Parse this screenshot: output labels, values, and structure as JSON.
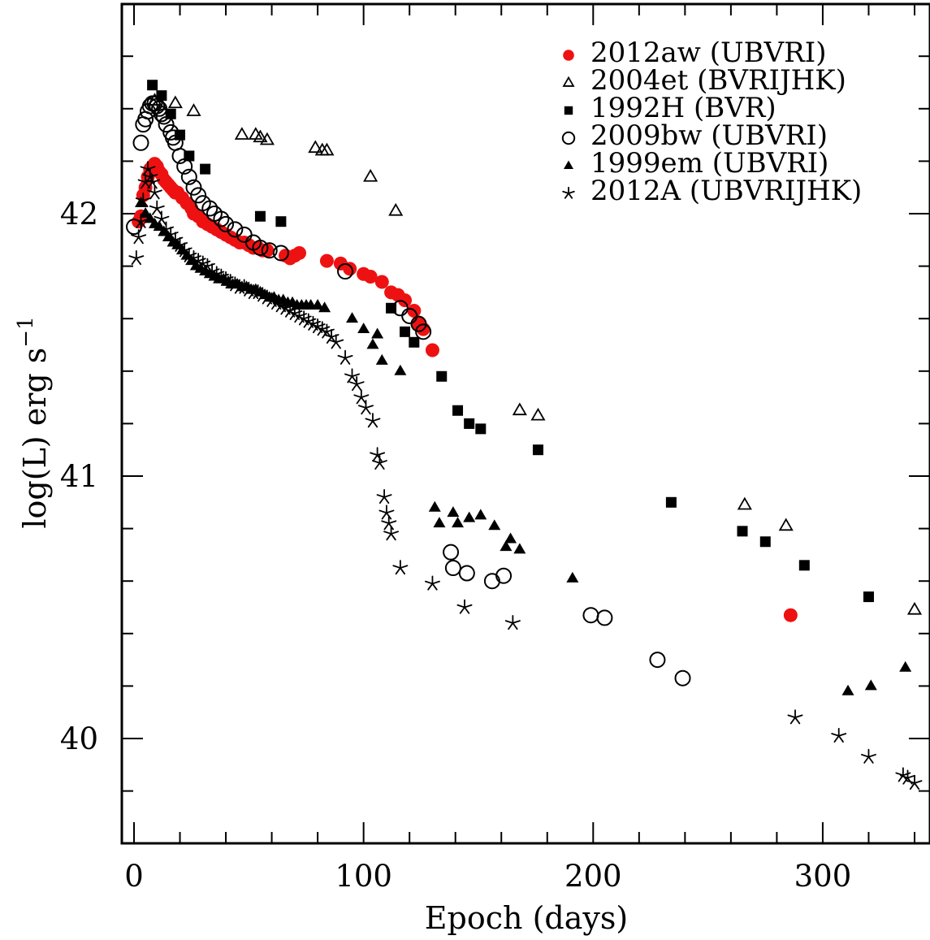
{
  "chart_data": {
    "type": "scatter",
    "title": "",
    "xlabel": "Epoch (days)",
    "ylabel": {
      "text": "log(L) erg s",
      "superscript": "−1"
    },
    "xlim": [
      -5,
      350
    ],
    "ylim": [
      39.6,
      42.8
    ],
    "xticks": [
      {
        "value": 0,
        "label": "0"
      },
      {
        "value": 100,
        "label": "100"
      },
      {
        "value": 200,
        "label": "200"
      },
      {
        "value": 300,
        "label": "300"
      }
    ],
    "yticks": [
      {
        "value": 40,
        "label": "40"
      },
      {
        "value": 41,
        "label": "41"
      },
      {
        "value": 42,
        "label": "42"
      }
    ],
    "x_minor_step": 20,
    "y_minor_step": 0.2,
    "grid": false,
    "legend_position": "top-right",
    "series": [
      {
        "name": "2012aw (UBVRI)",
        "marker": "filled-circle",
        "color": "#ee1111",
        "points": [
          [
            2,
            41.97
          ],
          [
            3,
            41.99
          ],
          [
            4,
            42.07
          ],
          [
            5,
            42.1
          ],
          [
            6,
            42.14
          ],
          [
            7,
            42.17
          ],
          [
            8,
            42.18
          ],
          [
            9,
            42.19
          ],
          [
            10,
            42.18
          ],
          [
            11,
            42.16
          ],
          [
            12,
            42.15
          ],
          [
            13,
            42.13
          ],
          [
            14,
            42.12
          ],
          [
            15,
            42.11
          ],
          [
            16,
            42.1
          ],
          [
            17,
            42.09
          ],
          [
            18,
            42.08
          ],
          [
            19,
            42.08
          ],
          [
            21,
            42.06
          ],
          [
            23,
            42.04
          ],
          [
            25,
            42.02
          ],
          [
            26,
            42.0
          ],
          [
            28,
            41.99
          ],
          [
            30,
            41.97
          ],
          [
            32,
            41.96
          ],
          [
            34,
            41.95
          ],
          [
            36,
            41.94
          ],
          [
            38,
            41.93
          ],
          [
            40,
            41.92
          ],
          [
            42,
            41.91
          ],
          [
            44,
            41.9
          ],
          [
            46,
            41.89
          ],
          [
            48,
            41.89
          ],
          [
            50,
            41.88
          ],
          [
            52,
            41.87
          ],
          [
            54,
            41.87
          ],
          [
            56,
            41.86
          ],
          [
            58,
            41.86
          ],
          [
            66,
            41.84
          ],
          [
            68,
            41.83
          ],
          [
            70,
            41.84
          ],
          [
            72,
            41.85
          ],
          [
            84,
            41.82
          ],
          [
            90,
            41.81
          ],
          [
            94,
            41.79
          ],
          [
            100,
            41.77
          ],
          [
            103,
            41.76
          ],
          [
            108,
            41.74
          ],
          [
            112,
            41.7
          ],
          [
            115,
            41.69
          ],
          [
            118,
            41.67
          ],
          [
            122,
            41.63
          ],
          [
            124,
            41.58
          ],
          [
            126,
            41.56
          ],
          [
            130,
            41.48
          ],
          [
            286,
            40.47
          ]
        ]
      },
      {
        "name": "2004et (BVRIJHK)",
        "marker": "open-triangle",
        "color": "#000000",
        "points": [
          [
            9,
            42.43
          ],
          [
            18,
            42.42
          ],
          [
            26,
            42.39
          ],
          [
            47,
            42.3
          ],
          [
            53,
            42.3
          ],
          [
            55,
            42.29
          ],
          [
            58,
            42.28
          ],
          [
            79,
            42.25
          ],
          [
            82,
            42.24
          ],
          [
            84,
            42.24
          ],
          [
            103,
            42.14
          ],
          [
            114,
            42.01
          ],
          [
            168,
            41.25
          ],
          [
            176,
            41.23
          ],
          [
            266,
            40.89
          ],
          [
            284,
            40.81
          ],
          [
            340,
            40.49
          ]
        ]
      },
      {
        "name": "1992H (BVR)",
        "marker": "filled-square",
        "color": "#000000",
        "points": [
          [
            8,
            42.49
          ],
          [
            12,
            42.45
          ],
          [
            16,
            42.38
          ],
          [
            20,
            42.3
          ],
          [
            24,
            42.22
          ],
          [
            31,
            42.17
          ],
          [
            55,
            41.99
          ],
          [
            64,
            41.97
          ],
          [
            112,
            41.64
          ],
          [
            118,
            41.55
          ],
          [
            122,
            41.51
          ],
          [
            134,
            41.38
          ],
          [
            141,
            41.25
          ],
          [
            146,
            41.2
          ],
          [
            151,
            41.18
          ],
          [
            176,
            41.1
          ],
          [
            234,
            40.9
          ],
          [
            265,
            40.79
          ],
          [
            275,
            40.75
          ],
          [
            292,
            40.66
          ],
          [
            320,
            40.54
          ]
        ]
      },
      {
        "name": "2009bw (UBVRI)",
        "marker": "open-circle",
        "color": "#000000",
        "points": [
          [
            0,
            41.95
          ],
          [
            3,
            42.27
          ],
          [
            4,
            42.34
          ],
          [
            5,
            42.36
          ],
          [
            6,
            42.39
          ],
          [
            7,
            42.41
          ],
          [
            8,
            42.42
          ],
          [
            9,
            42.42
          ],
          [
            10,
            42.41
          ],
          [
            11,
            42.4
          ],
          [
            12,
            42.38
          ],
          [
            13,
            42.37
          ],
          [
            14,
            42.34
          ],
          [
            16,
            42.31
          ],
          [
            17,
            42.29
          ],
          [
            18,
            42.27
          ],
          [
            20,
            42.22
          ],
          [
            22,
            42.18
          ],
          [
            24,
            42.14
          ],
          [
            26,
            42.1
          ],
          [
            28,
            42.07
          ],
          [
            30,
            42.04
          ],
          [
            33,
            42.02
          ],
          [
            35,
            42.0
          ],
          [
            38,
            41.98
          ],
          [
            40,
            41.96
          ],
          [
            44,
            41.94
          ],
          [
            48,
            41.92
          ],
          [
            52,
            41.89
          ],
          [
            55,
            41.87
          ],
          [
            59,
            41.86
          ],
          [
            64,
            41.85
          ],
          [
            92,
            41.78
          ],
          [
            116,
            41.64
          ],
          [
            120,
            41.61
          ],
          [
            124,
            41.58
          ],
          [
            126,
            41.55
          ],
          [
            138,
            40.71
          ],
          [
            139,
            40.65
          ],
          [
            145,
            40.63
          ],
          [
            156,
            40.6
          ],
          [
            161,
            40.62
          ],
          [
            199,
            40.47
          ],
          [
            205,
            40.46
          ],
          [
            228,
            40.3
          ],
          [
            239,
            40.23
          ]
        ]
      },
      {
        "name": "1999em (UBVRI)",
        "marker": "filled-triangle",
        "color": "#000000",
        "points": [
          [
            3,
            42.04
          ],
          [
            5,
            42.0
          ],
          [
            7,
            41.98
          ],
          [
            9,
            41.96
          ],
          [
            11,
            41.95
          ],
          [
            13,
            41.93
          ],
          [
            15,
            41.91
          ],
          [
            17,
            41.89
          ],
          [
            19,
            41.88
          ],
          [
            21,
            41.86
          ],
          [
            23,
            41.84
          ],
          [
            25,
            41.82
          ],
          [
            27,
            41.8
          ],
          [
            29,
            41.79
          ],
          [
            31,
            41.78
          ],
          [
            33,
            41.77
          ],
          [
            35,
            41.76
          ],
          [
            37,
            41.75
          ],
          [
            39,
            41.75
          ],
          [
            41,
            41.74
          ],
          [
            43,
            41.73
          ],
          [
            45,
            41.73
          ],
          [
            47,
            41.72
          ],
          [
            49,
            41.72
          ],
          [
            51,
            41.71
          ],
          [
            53,
            41.71
          ],
          [
            55,
            41.7
          ],
          [
            57,
            41.69
          ],
          [
            59,
            41.68
          ],
          [
            61,
            41.68
          ],
          [
            63,
            41.67
          ],
          [
            65,
            41.67
          ],
          [
            67,
            41.66
          ],
          [
            69,
            41.66
          ],
          [
            71,
            41.65
          ],
          [
            73,
            41.65
          ],
          [
            75,
            41.65
          ],
          [
            77,
            41.65
          ],
          [
            80,
            41.65
          ],
          [
            83,
            41.64
          ],
          [
            95,
            41.6
          ],
          [
            100,
            41.56
          ],
          [
            104,
            41.5
          ],
          [
            106,
            41.54
          ],
          [
            108,
            41.44
          ],
          [
            116,
            41.4
          ],
          [
            131,
            40.88
          ],
          [
            133,
            40.82
          ],
          [
            139,
            40.86
          ],
          [
            141,
            40.82
          ],
          [
            146,
            40.84
          ],
          [
            151,
            40.85
          ],
          [
            157,
            40.81
          ],
          [
            162,
            40.73
          ],
          [
            164,
            40.76
          ],
          [
            168,
            40.72
          ],
          [
            191,
            40.61
          ],
          [
            311,
            40.18
          ],
          [
            321,
            40.2
          ],
          [
            336,
            40.27
          ]
        ]
      },
      {
        "name": "2012A (UBVRIJHK)",
        "marker": "star",
        "color": "#000000",
        "points": [
          [
            1,
            41.83
          ],
          [
            2,
            41.91
          ],
          [
            3,
            41.97
          ],
          [
            4,
            42.05
          ],
          [
            5,
            42.12
          ],
          [
            6,
            42.17
          ],
          [
            7,
            42.14
          ],
          [
            8,
            42.12
          ],
          [
            9,
            42.08
          ],
          [
            10,
            42.02
          ],
          [
            12,
            41.98
          ],
          [
            14,
            41.94
          ],
          [
            16,
            41.92
          ],
          [
            18,
            41.9
          ],
          [
            20,
            41.88
          ],
          [
            22,
            41.86
          ],
          [
            24,
            41.84
          ],
          [
            26,
            41.83
          ],
          [
            28,
            41.82
          ],
          [
            30,
            41.81
          ],
          [
            32,
            41.8
          ],
          [
            34,
            41.78
          ],
          [
            36,
            41.77
          ],
          [
            38,
            41.76
          ],
          [
            40,
            41.75
          ],
          [
            42,
            41.74
          ],
          [
            44,
            41.73
          ],
          [
            46,
            41.72
          ],
          [
            48,
            41.72
          ],
          [
            50,
            41.71
          ],
          [
            52,
            41.7
          ],
          [
            54,
            41.7
          ],
          [
            56,
            41.69
          ],
          [
            58,
            41.68
          ],
          [
            60,
            41.67
          ],
          [
            62,
            41.66
          ],
          [
            64,
            41.65
          ],
          [
            66,
            41.64
          ],
          [
            68,
            41.63
          ],
          [
            70,
            41.62
          ],
          [
            72,
            41.61
          ],
          [
            74,
            41.6
          ],
          [
            76,
            41.59
          ],
          [
            78,
            41.58
          ],
          [
            80,
            41.57
          ],
          [
            82,
            41.56
          ],
          [
            84,
            41.55
          ],
          [
            86,
            41.53
          ],
          [
            88,
            41.51
          ],
          [
            92,
            41.45
          ],
          [
            95,
            41.38
          ],
          [
            97,
            41.35
          ],
          [
            99,
            41.3
          ],
          [
            101,
            41.26
          ],
          [
            104,
            41.21
          ],
          [
            106,
            41.08
          ],
          [
            107,
            41.05
          ],
          [
            109,
            40.92
          ],
          [
            110,
            40.86
          ],
          [
            111,
            40.82
          ],
          [
            112,
            40.78
          ],
          [
            116,
            40.65
          ],
          [
            130,
            40.59
          ],
          [
            144,
            40.5
          ],
          [
            165,
            40.44
          ],
          [
            288,
            40.08
          ],
          [
            307,
            40.01
          ],
          [
            320,
            39.93
          ],
          [
            335,
            39.86
          ],
          [
            337,
            39.85
          ],
          [
            340,
            39.83
          ]
        ]
      }
    ]
  }
}
